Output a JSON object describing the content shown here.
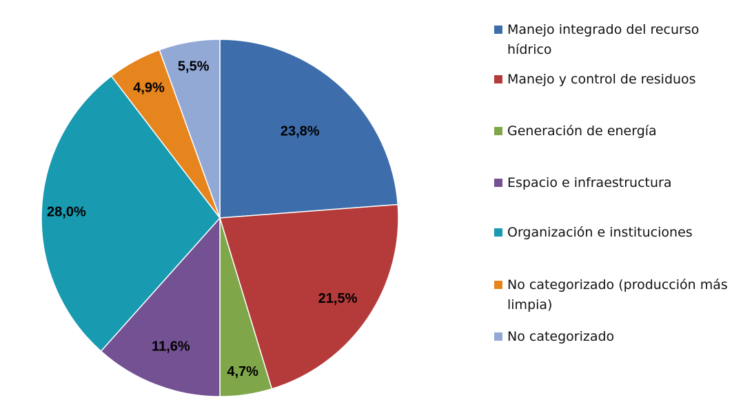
{
  "chart_data": {
    "type": "pie",
    "title": "",
    "start_angle_deg": 0,
    "direction": "clockwise",
    "legend_position": "right",
    "slices": [
      {
        "label": "Manejo integrado del recurso hídrico",
        "legend_lines": [
          "Manejo integrado del recurso",
          "hídrico"
        ],
        "value": 23.8,
        "display": "23,8%",
        "color": "#3D6EAB"
      },
      {
        "label": "Manejo y control de residuos",
        "legend_lines": [
          "Manejo y control de residuos"
        ],
        "value": 21.5,
        "display": "21,5%",
        "color": "#B53B3A"
      },
      {
        "label": "Generación de energía",
        "legend_lines": [
          "Generación de energía"
        ],
        "value": 4.7,
        "display": "4,7%",
        "color": "#7FA74A"
      },
      {
        "label": "Espacio e infraestructura",
        "legend_lines": [
          "Espacio e infraestructura"
        ],
        "value": 11.6,
        "display": "11,6%",
        "color": "#745193"
      },
      {
        "label": "Organización e instituciones",
        "legend_lines": [
          "Organización e instituciones"
        ],
        "value": 28.0,
        "display": "28,0%",
        "color": "#189AB1"
      },
      {
        "label": "No categorizado (producción más limpia)",
        "legend_lines": [
          "No categorizado (producción más",
          "limpia)"
        ],
        "value": 4.9,
        "display": "4,9%",
        "color": "#E6841E"
      },
      {
        "label": "No categorizado",
        "legend_lines": [
          "No categorizado"
        ],
        "value": 5.5,
        "display": "5,5%",
        "color": "#92A9D6"
      }
    ]
  }
}
